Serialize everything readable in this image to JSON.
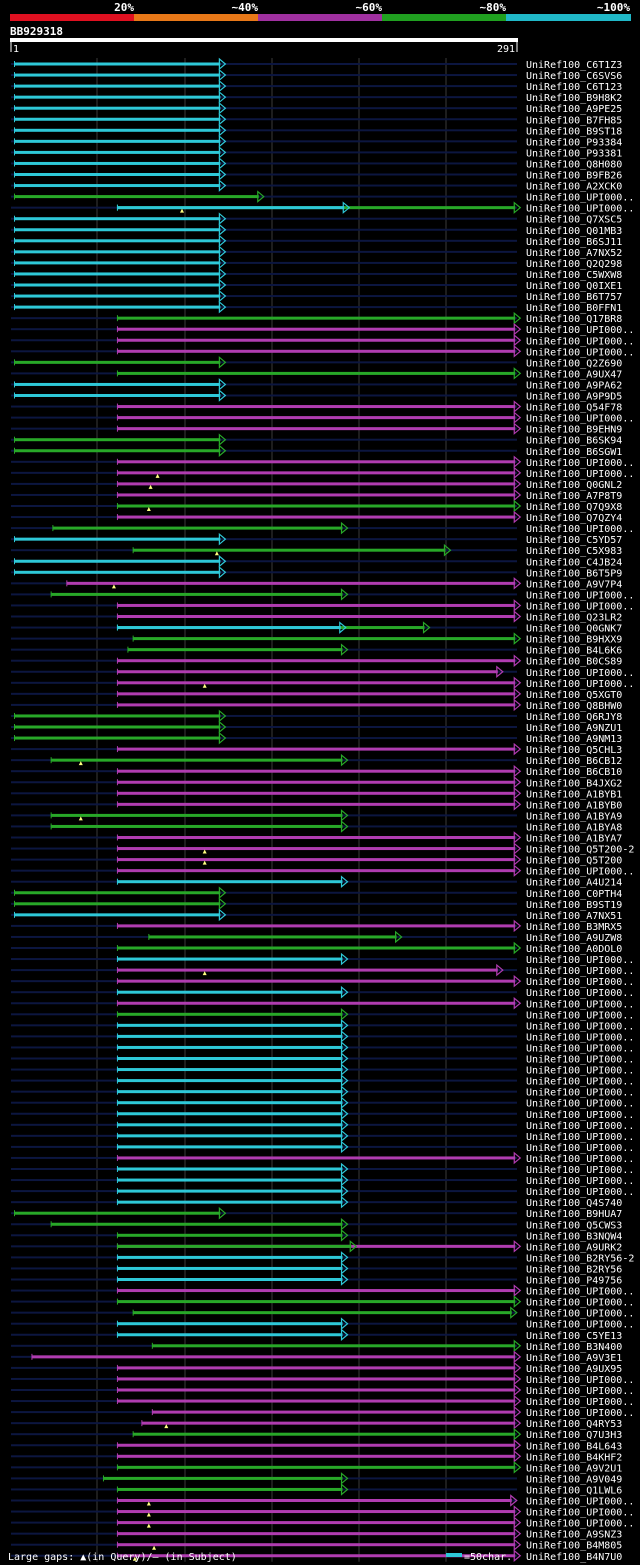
{
  "query_id": "BB929318",
  "ruler": {
    "start": "1",
    "end": "291"
  },
  "legend_top": [
    {
      "label": "20%",
      "color": "#e01020"
    },
    {
      "label": "~40%",
      "color": "#e87818"
    },
    {
      "label": "~60%",
      "color": "#a030a0"
    },
    {
      "label": "~80%",
      "color": "#20a020"
    },
    {
      "label": "~100%",
      "color": "#20b8c8"
    }
  ],
  "footer": {
    "gaps_text": "Large gaps: ▲(in Query)/– (in Subject)",
    "scale_text": "=50char."
  },
  "chart_data": {
    "type": "sequence-alignment-map",
    "query_length": 291,
    "hits": [
      {
        "label": "UniRef100_C6T1Z3",
        "start": 3,
        "end": 121,
        "color": "cyan"
      },
      {
        "label": "UniRef100_C6SVS6",
        "start": 3,
        "end": 121,
        "color": "cyan"
      },
      {
        "label": "UniRef100_C6T123",
        "start": 3,
        "end": 121,
        "color": "cyan"
      },
      {
        "label": "UniRef100_B9H8K2",
        "start": 3,
        "end": 121,
        "color": "cyan"
      },
      {
        "label": "UniRef100_A9PE25",
        "start": 3,
        "end": 121,
        "color": "cyan"
      },
      {
        "label": "UniRef100_B7FH85",
        "start": 3,
        "end": 121,
        "color": "cyan"
      },
      {
        "label": "UniRef100_B9ST18",
        "start": 3,
        "end": 121,
        "color": "cyan"
      },
      {
        "label": "UniRef100_P93384",
        "start": 3,
        "end": 121,
        "color": "cyan"
      },
      {
        "label": "UniRef100_P93381",
        "start": 3,
        "end": 121,
        "color": "cyan"
      },
      {
        "label": "UniRef100_Q8H080",
        "start": 3,
        "end": 121,
        "color": "cyan"
      },
      {
        "label": "UniRef100_B9FB26",
        "start": 3,
        "end": 121,
        "color": "cyan"
      },
      {
        "label": "UniRef100_A2XCK0",
        "start": 3,
        "end": 121,
        "color": "cyan"
      },
      {
        "label": "UniRef100_UPI000..",
        "start": 3,
        "end": 143,
        "color": "green"
      },
      {
        "label": "UniRef100_UPI000..",
        "start": 62,
        "end": 290,
        "color": "green",
        "extra": [
          {
            "start": 62,
            "end": 192,
            "color": "cyan"
          }
        ],
        "qgaps": [
          99
        ]
      },
      {
        "label": "UniRef100_Q7XSC5",
        "start": 3,
        "end": 121,
        "color": "cyan"
      },
      {
        "label": "UniRef100_Q01MB3",
        "start": 3,
        "end": 121,
        "color": "cyan"
      },
      {
        "label": "UniRef100_B6SJ11",
        "start": 3,
        "end": 121,
        "color": "cyan"
      },
      {
        "label": "UniRef100_A7NX52",
        "start": 3,
        "end": 121,
        "color": "cyan"
      },
      {
        "label": "UniRef100_Q2Q298",
        "start": 3,
        "end": 121,
        "color": "cyan"
      },
      {
        "label": "UniRef100_C5WXW8",
        "start": 3,
        "end": 121,
        "color": "cyan"
      },
      {
        "label": "UniRef100_Q0IXE1",
        "start": 3,
        "end": 121,
        "color": "cyan"
      },
      {
        "label": "UniRef100_B6T757",
        "start": 3,
        "end": 121,
        "color": "cyan"
      },
      {
        "label": "UniRef100_B0FFN1",
        "start": 3,
        "end": 121,
        "color": "cyan"
      },
      {
        "label": "UniRef100_Q17BR8",
        "start": 62,
        "end": 290,
        "color": "green"
      },
      {
        "label": "UniRef100_UPI000..",
        "start": 62,
        "end": 290,
        "color": "magenta"
      },
      {
        "label": "UniRef100_UPI000..",
        "start": 62,
        "end": 290,
        "color": "magenta"
      },
      {
        "label": "UniRef100_UPI000..",
        "start": 62,
        "end": 290,
        "color": "magenta"
      },
      {
        "label": "UniRef100_Q2Z690",
        "start": 3,
        "end": 121,
        "color": "green"
      },
      {
        "label": "UniRef100_A9UX47",
        "start": 62,
        "end": 290,
        "color": "green"
      },
      {
        "label": "UniRef100_A9PA62",
        "start": 3,
        "end": 121,
        "color": "cyan"
      },
      {
        "label": "UniRef100_A9P9D5",
        "start": 3,
        "end": 121,
        "color": "cyan"
      },
      {
        "label": "UniRef100_Q54F78",
        "start": 62,
        "end": 290,
        "color": "magenta"
      },
      {
        "label": "UniRef100_UPI000..",
        "start": 62,
        "end": 290,
        "color": "magenta"
      },
      {
        "label": "UniRef100_B9EHN9",
        "start": 62,
        "end": 290,
        "color": "magenta"
      },
      {
        "label": "UniRef100_B6SK94",
        "start": 3,
        "end": 121,
        "color": "green"
      },
      {
        "label": "UniRef100_B6SGW1",
        "start": 3,
        "end": 121,
        "color": "green"
      },
      {
        "label": "UniRef100_UPI000..",
        "start": 62,
        "end": 290,
        "color": "magenta"
      },
      {
        "label": "UniRef100_UPI000..",
        "start": 62,
        "end": 290,
        "color": "magenta",
        "qgaps": [
          85
        ]
      },
      {
        "label": "UniRef100_Q0GNL2",
        "start": 62,
        "end": 290,
        "color": "magenta",
        "qgaps": [
          81
        ]
      },
      {
        "label": "UniRef100_A7P8T9",
        "start": 62,
        "end": 290,
        "color": "magenta"
      },
      {
        "label": "UniRef100_Q7Q9X8",
        "start": 62,
        "end": 290,
        "color": "green",
        "qgaps": [
          80
        ]
      },
      {
        "label": "UniRef100_Q7QZY4",
        "start": 62,
        "end": 290,
        "color": "magenta"
      },
      {
        "label": "UniRef100_UPI000..",
        "start": 25,
        "end": 191,
        "color": "green"
      },
      {
        "label": "UniRef100_C5YD57",
        "start": 3,
        "end": 121,
        "color": "cyan"
      },
      {
        "label": "UniRef100_C5X983",
        "start": 71,
        "end": 250,
        "color": "green",
        "qgaps": [
          119
        ]
      },
      {
        "label": "UniRef100_C4JB24",
        "start": 3,
        "end": 121,
        "color": "cyan"
      },
      {
        "label": "UniRef100_B6T5P9",
        "start": 3,
        "end": 121,
        "color": "cyan"
      },
      {
        "label": "UniRef100_A9V7P4",
        "start": 33,
        "end": 290,
        "color": "magenta",
        "qgaps": [
          60
        ]
      },
      {
        "label": "UniRef100_UPI000..",
        "start": 24,
        "end": 191,
        "color": "green"
      },
      {
        "label": "UniRef100_UPI000..",
        "start": 62,
        "end": 290,
        "color": "magenta"
      },
      {
        "label": "UniRef100_Q23LR2",
        "start": 62,
        "end": 290,
        "color": "magenta"
      },
      {
        "label": "UniRef100_Q0GNK7",
        "start": 62,
        "end": 238,
        "color": "green",
        "extra": [
          {
            "start": 62,
            "end": 190,
            "color": "cyan"
          }
        ]
      },
      {
        "label": "UniRef100_B9HXX9",
        "start": 71,
        "end": 290,
        "color": "green"
      },
      {
        "label": "UniRef100_B4L6K6",
        "start": 68,
        "end": 191,
        "color": "green"
      },
      {
        "label": "UniRef100_B0CS89",
        "start": 62,
        "end": 290,
        "color": "magenta"
      },
      {
        "label": "UniRef100_UPI000..",
        "start": 62,
        "end": 280,
        "color": "magenta"
      },
      {
        "label": "UniRef100_UPI000..",
        "start": 62,
        "end": 290,
        "color": "magenta",
        "qgaps": [
          112
        ]
      },
      {
        "label": "UniRef100_Q5XGT0",
        "start": 62,
        "end": 290,
        "color": "magenta"
      },
      {
        "label": "UniRef100_Q8BHW0",
        "start": 62,
        "end": 290,
        "color": "magenta"
      },
      {
        "label": "UniRef100_Q6RJY8",
        "start": 3,
        "end": 121,
        "color": "green"
      },
      {
        "label": "UniRef100_A9NZU1",
        "start": 3,
        "end": 121,
        "color": "green"
      },
      {
        "label": "UniRef100_A9NM13",
        "start": 3,
        "end": 121,
        "color": "green"
      },
      {
        "label": "UniRef100_Q5CHL3",
        "start": 62,
        "end": 290,
        "color": "magenta"
      },
      {
        "label": "UniRef100_B6CB12",
        "start": 24,
        "end": 191,
        "color": "green",
        "qgaps": [
          41
        ]
      },
      {
        "label": "UniRef100_B6CB10",
        "start": 62,
        "end": 290,
        "color": "magenta"
      },
      {
        "label": "UniRef100_B4JXG2",
        "start": 62,
        "end": 290,
        "color": "magenta"
      },
      {
        "label": "UniRef100_A1BYB1",
        "start": 62,
        "end": 290,
        "color": "magenta"
      },
      {
        "label": "UniRef100_A1BYB0",
        "start": 62,
        "end": 290,
        "color": "magenta"
      },
      {
        "label": "UniRef100_A1BYA9",
        "start": 24,
        "end": 191,
        "color": "green",
        "qgaps": [
          41
        ]
      },
      {
        "label": "UniRef100_A1BYA8",
        "start": 24,
        "end": 191,
        "color": "green"
      },
      {
        "label": "UniRef100_A1BYA7",
        "start": 62,
        "end": 290,
        "color": "magenta"
      },
      {
        "label": "UniRef100_Q5T200-2",
        "start": 62,
        "end": 290,
        "color": "magenta",
        "qgaps": [
          112
        ]
      },
      {
        "label": "UniRef100_Q5T200",
        "start": 62,
        "end": 290,
        "color": "magenta",
        "qgaps": [
          112
        ]
      },
      {
        "label": "UniRef100_UPI000..",
        "start": 62,
        "end": 290,
        "color": "magenta"
      },
      {
        "label": "UniRef100_A4U214",
        "start": 62,
        "end": 191,
        "color": "cyan"
      },
      {
        "label": "UniRef100_C0PTH4",
        "start": 3,
        "end": 121,
        "color": "green"
      },
      {
        "label": "UniRef100_B9ST19",
        "start": 3,
        "end": 121,
        "color": "green"
      },
      {
        "label": "UniRef100_A7NX51",
        "start": 3,
        "end": 121,
        "color": "cyan"
      },
      {
        "label": "UniRef100_B3MRX5",
        "start": 62,
        "end": 290,
        "color": "magenta"
      },
      {
        "label": "UniRef100_A9UZW8",
        "start": 80,
        "end": 222,
        "color": "green"
      },
      {
        "label": "UniRef100_A0DOL0",
        "start": 62,
        "end": 290,
        "color": "green"
      },
      {
        "label": "UniRef100_UPI000..",
        "start": 62,
        "end": 191,
        "color": "cyan"
      },
      {
        "label": "UniRef100_UPI000..",
        "start": 62,
        "end": 280,
        "color": "magenta",
        "qgaps": [
          112
        ]
      },
      {
        "label": "UniRef100_UPI000..",
        "start": 62,
        "end": 290,
        "color": "magenta"
      },
      {
        "label": "UniRef100_UPI000..",
        "start": 62,
        "end": 191,
        "color": "cyan"
      },
      {
        "label": "UniRef100_UPI000..",
        "start": 62,
        "end": 290,
        "color": "magenta"
      },
      {
        "label": "UniRef100_UPI000..",
        "start": 62,
        "end": 191,
        "color": "green"
      },
      {
        "label": "UniRef100_UPI000..",
        "start": 62,
        "end": 191,
        "color": "cyan"
      },
      {
        "label": "UniRef100_UPI000..",
        "start": 62,
        "end": 191,
        "color": "cyan"
      },
      {
        "label": "UniRef100_UPI000..",
        "start": 62,
        "end": 191,
        "color": "cyan"
      },
      {
        "label": "UniRef100_UPI000..",
        "start": 62,
        "end": 191,
        "color": "cyan"
      },
      {
        "label": "UniRef100_UPI000..",
        "start": 62,
        "end": 191,
        "color": "cyan"
      },
      {
        "label": "UniRef100_UPI000..",
        "start": 62,
        "end": 191,
        "color": "cyan"
      },
      {
        "label": "UniRef100_UPI000..",
        "start": 62,
        "end": 191,
        "color": "cyan"
      },
      {
        "label": "UniRef100_UPI000..",
        "start": 62,
        "end": 191,
        "color": "cyan"
      },
      {
        "label": "UniRef100_UPI000..",
        "start": 62,
        "end": 191,
        "color": "cyan"
      },
      {
        "label": "UniRef100_UPI000..",
        "start": 62,
        "end": 191,
        "color": "cyan"
      },
      {
        "label": "UniRef100_UPI000..",
        "start": 62,
        "end": 191,
        "color": "cyan"
      },
      {
        "label": "UniRef100_UPI000..",
        "start": 62,
        "end": 191,
        "color": "cyan"
      },
      {
        "label": "UniRef100_UPI000..",
        "start": 62,
        "end": 290,
        "color": "magenta"
      },
      {
        "label": "UniRef100_UPI000..",
        "start": 62,
        "end": 191,
        "color": "cyan"
      },
      {
        "label": "UniRef100_UPI000..",
        "start": 62,
        "end": 191,
        "color": "cyan"
      },
      {
        "label": "UniRef100_UPI000..",
        "start": 62,
        "end": 191,
        "color": "cyan"
      },
      {
        "label": "UniRef100_Q4S740",
        "start": 62,
        "end": 191,
        "color": "cyan"
      },
      {
        "label": "UniRef100_B9HUA7",
        "start": 3,
        "end": 121,
        "color": "green"
      },
      {
        "label": "UniRef100_Q5CWS3",
        "start": 24,
        "end": 191,
        "color": "green"
      },
      {
        "label": "UniRef100_B3NQW4",
        "start": 62,
        "end": 191,
        "color": "green"
      },
      {
        "label": "UniRef100_A9URK2",
        "start": 62,
        "end": 290,
        "color": "magenta",
        "extra": [
          {
            "start": 62,
            "end": 196,
            "color": "green"
          }
        ]
      },
      {
        "label": "UniRef100_B2RY56-2",
        "start": 62,
        "end": 191,
        "color": "cyan"
      },
      {
        "label": "UniRef100_B2RY56",
        "start": 62,
        "end": 191,
        "color": "cyan"
      },
      {
        "label": "UniRef100_P49756",
        "start": 62,
        "end": 191,
        "color": "cyan"
      },
      {
        "label": "UniRef100_UPI000..",
        "start": 62,
        "end": 290,
        "color": "magenta"
      },
      {
        "label": "UniRef100_UPI000..",
        "start": 62,
        "end": 290,
        "color": "green"
      },
      {
        "label": "UniRef100_UPI000..",
        "start": 71,
        "end": 288,
        "color": "green"
      },
      {
        "label": "UniRef100_UPI000..",
        "start": 62,
        "end": 191,
        "color": "cyan"
      },
      {
        "label": "UniRef100_C5YE13",
        "start": 62,
        "end": 191,
        "color": "cyan"
      },
      {
        "label": "UniRef100_B3N400",
        "start": 82,
        "end": 290,
        "color": "green"
      },
      {
        "label": "UniRef100_A9V3E1",
        "start": 13,
        "end": 290,
        "color": "magenta"
      },
      {
        "label": "UniRef100_A9UX95",
        "start": 62,
        "end": 290,
        "color": "magenta"
      },
      {
        "label": "UniRef100_UPI000..",
        "start": 62,
        "end": 290,
        "color": "magenta"
      },
      {
        "label": "UniRef100_UPI000..",
        "start": 62,
        "end": 290,
        "color": "magenta"
      },
      {
        "label": "UniRef100_UPI000..",
        "start": 62,
        "end": 290,
        "color": "magenta"
      },
      {
        "label": "UniRef100_UPI000..",
        "start": 82,
        "end": 290,
        "color": "magenta"
      },
      {
        "label": "UniRef100_Q4RY53",
        "start": 76,
        "end": 290,
        "color": "magenta",
        "qgaps": [
          90
        ]
      },
      {
        "label": "UniRef100_Q7U3H3",
        "start": 71,
        "end": 290,
        "color": "green"
      },
      {
        "label": "UniRef100_B4L643",
        "start": 62,
        "end": 290,
        "color": "magenta"
      },
      {
        "label": "UniRef100_B4KHF2",
        "start": 62,
        "end": 290,
        "color": "magenta"
      },
      {
        "label": "UniRef100_A9V2U1",
        "start": 62,
        "end": 290,
        "color": "green"
      },
      {
        "label": "UniRef100_A9V049",
        "start": 54,
        "end": 191,
        "color": "green"
      },
      {
        "label": "UniRef100_Q1LWL6",
        "start": 62,
        "end": 191,
        "color": "green"
      },
      {
        "label": "UniRef100_UPI000..",
        "start": 62,
        "end": 288,
        "color": "magenta",
        "qgaps": [
          80
        ]
      },
      {
        "label": "UniRef100_UPI000..",
        "start": 62,
        "end": 290,
        "color": "magenta",
        "qgaps": [
          80
        ]
      },
      {
        "label": "UniRef100_UPI000..",
        "start": 62,
        "end": 290,
        "color": "magenta",
        "qgaps": [
          80
        ]
      },
      {
        "label": "UniRef100_A9SNZ3",
        "start": 62,
        "end": 290,
        "color": "magenta"
      },
      {
        "label": "UniRef100_B4M805",
        "start": 62,
        "end": 290,
        "color": "magenta",
        "qgaps": [
          83
        ]
      },
      {
        "label": "UniRef100_B4N7U0",
        "start": 62,
        "end": 290,
        "color": "magenta",
        "qgaps": [
          72
        ]
      }
    ]
  },
  "colors": {
    "cyan": "#2ec8d8",
    "green": "#28a828",
    "magenta": "#b03cb0",
    "track": "#0c1640",
    "grid": "#3a3a3a",
    "ruler": "#ffffff",
    "gap_marker": "#ffff80"
  }
}
